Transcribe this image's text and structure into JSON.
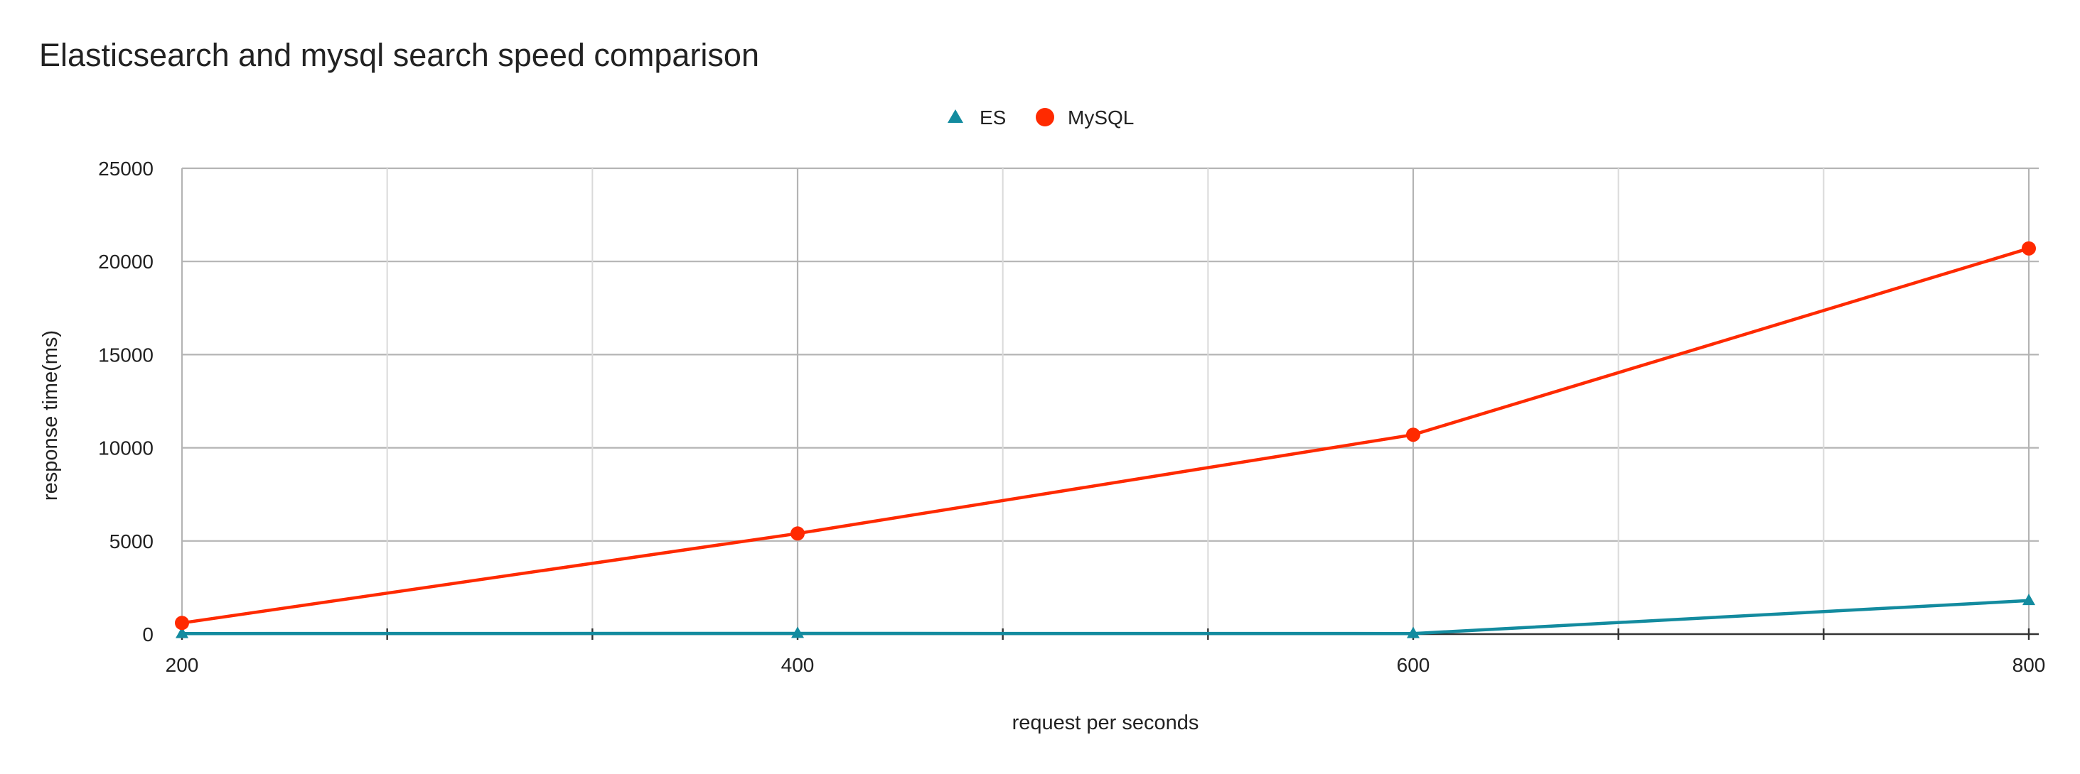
{
  "chart_data": {
    "type": "line",
    "title": "Elasticsearch and mysql search speed comparison",
    "xlabel": "request per seconds",
    "ylabel": "response time(ms)",
    "x": [
      200,
      400,
      600,
      800
    ],
    "x_ticks": [
      "200",
      "400",
      "600",
      "800"
    ],
    "y_ticks": [
      "0",
      "5000",
      "10000",
      "15000",
      "20000",
      "25000"
    ],
    "xlim": [
      200,
      800
    ],
    "ylim": [
      0,
      25000
    ],
    "grid": true,
    "legend_position": "top-center",
    "series": [
      {
        "name": "ES",
        "values": [
          30,
          40,
          30,
          1800
        ],
        "color": "#138b9f",
        "marker": "triangle"
      },
      {
        "name": "MySQL",
        "values": [
          600,
          5400,
          10700,
          20700
        ],
        "color": "#ff2a00",
        "marker": "circle"
      }
    ]
  }
}
